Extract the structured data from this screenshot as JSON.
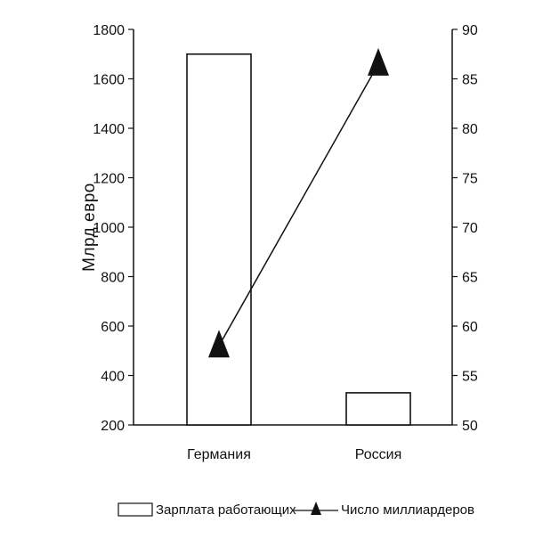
{
  "chart_data": {
    "type": "bar",
    "categories": [
      "Германия",
      "Россия"
    ],
    "ylabel": "Млрд евро",
    "ylim": [
      200,
      1800
    ],
    "yticks": [
      200,
      400,
      600,
      800,
      1000,
      1200,
      1400,
      1600,
      1800
    ],
    "y2lim": [
      50,
      90
    ],
    "y2ticks": [
      50,
      55,
      60,
      65,
      70,
      75,
      80,
      85,
      90
    ],
    "series": [
      {
        "name": "Зарплата работающих",
        "type": "bar",
        "axis": "left",
        "values": [
          1700,
          330
        ]
      },
      {
        "name": "Число миллиардеров",
        "type": "line",
        "axis": "right",
        "marker": "triangle",
        "values": [
          58,
          86.5
        ]
      }
    ],
    "legend_position": "bottom",
    "grid": false
  },
  "colors": {
    "ink": "#111111",
    "background": "#ffffff",
    "bar_fill": "#ffffff"
  }
}
